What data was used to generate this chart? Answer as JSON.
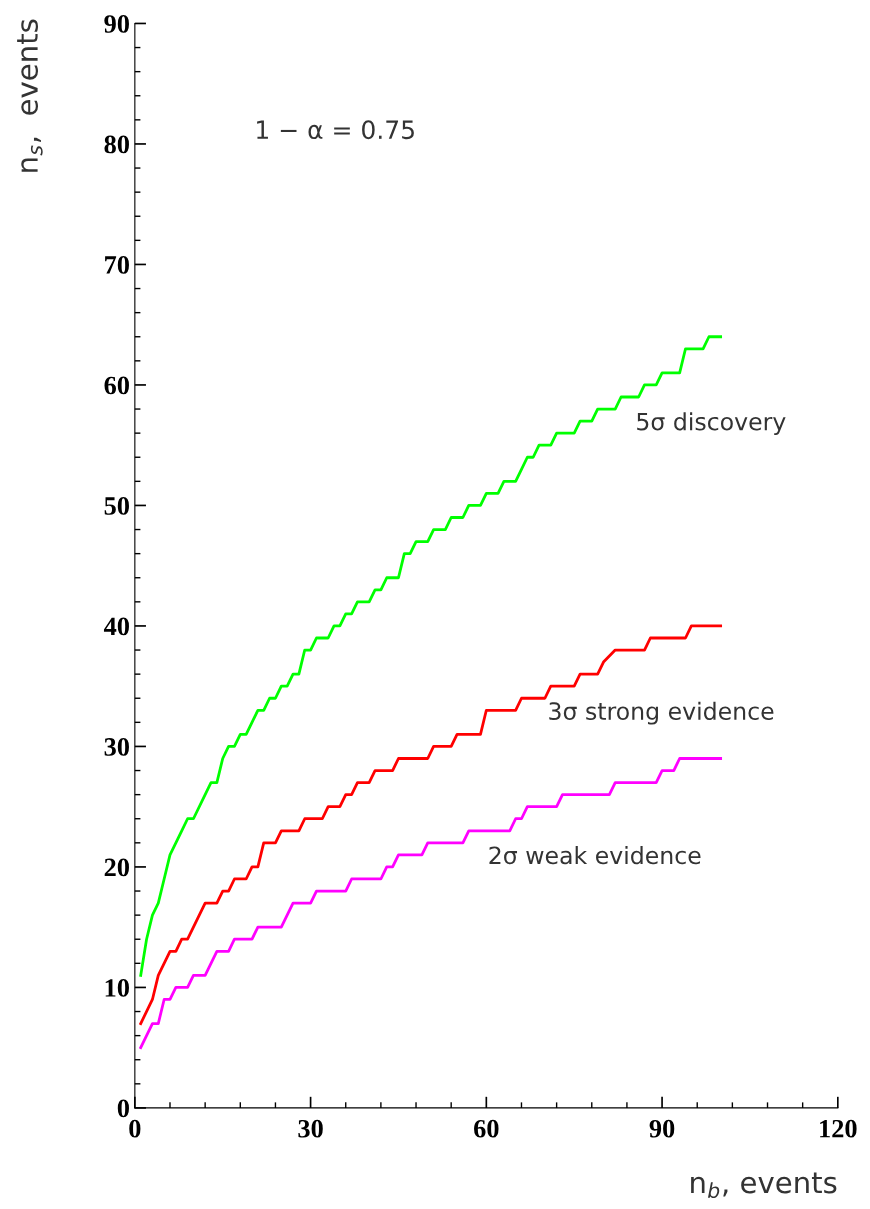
{
  "chart_data": {
    "type": "line",
    "xlabel": "n$_{b}$, events",
    "ylabel": "n$_{s}$,  events",
    "xlim": [
      0,
      120
    ],
    "xticks": [
      0,
      30,
      60,
      90,
      120
    ],
    "ylim": [
      0,
      90
    ],
    "yticks": [
      0,
      10,
      20,
      30,
      40,
      50,
      60,
      70,
      80,
      90
    ],
    "grid": false,
    "legend": false,
    "marker": "none",
    "line_style": "solid",
    "annotations": [
      "1 − α = 0.75"
    ],
    "series": [
      {
        "name": "5σ discovery",
        "color": "#00ff00",
        "x": [
          1,
          2,
          3,
          4,
          5,
          6,
          8,
          9,
          10,
          12,
          13,
          14,
          15,
          16,
          17,
          18,
          19,
          20,
          21,
          22,
          23,
          24,
          25,
          26,
          27,
          28,
          29,
          30,
          31,
          33,
          34,
          35,
          36,
          37,
          38,
          40,
          41,
          42,
          43,
          45,
          46,
          47,
          48,
          50,
          51,
          53,
          54,
          56,
          57,
          59,
          60,
          62,
          63,
          65,
          66,
          67,
          68,
          69,
          71,
          72,
          75,
          76,
          78,
          79,
          82,
          83,
          86,
          87,
          89,
          90,
          92,
          93,
          94,
          97,
          98,
          100
        ],
        "values": [
          11,
          14,
          16,
          17,
          19,
          21,
          23,
          24,
          24,
          26,
          27,
          27,
          29,
          30,
          30,
          31,
          31,
          32,
          33,
          33,
          34,
          34,
          35,
          35,
          36,
          36,
          38,
          38,
          39,
          39,
          40,
          40,
          41,
          41,
          42,
          42,
          43,
          43,
          44,
          44,
          46,
          46,
          47,
          47,
          48,
          48,
          49,
          49,
          50,
          50,
          51,
          51,
          52,
          52,
          53,
          54,
          54,
          55,
          55,
          56,
          56,
          57,
          57,
          58,
          58,
          59,
          59,
          60,
          60,
          61,
          61,
          61,
          63,
          63,
          64,
          64
        ]
      },
      {
        "name": "3σ strong evidence",
        "color": "#ff0000",
        "x": [
          1,
          3,
          4,
          6,
          7,
          8,
          9,
          10,
          12,
          14,
          15,
          16,
          17,
          19,
          20,
          21,
          22,
          24,
          25,
          28,
          29,
          32,
          33,
          35,
          36,
          37,
          38,
          40,
          41,
          44,
          45,
          50,
          51,
          54,
          55,
          59,
          60,
          65,
          66,
          70,
          71,
          75,
          76,
          79,
          80,
          82,
          87,
          88,
          94,
          95,
          100
        ],
        "values": [
          7,
          9,
          11,
          13,
          13,
          14,
          14,
          15,
          17,
          17,
          18,
          18,
          19,
          19,
          20,
          20,
          22,
          22,
          23,
          23,
          24,
          24,
          25,
          25,
          26,
          26,
          27,
          27,
          28,
          28,
          29,
          29,
          30,
          30,
          31,
          31,
          33,
          33,
          34,
          34,
          35,
          35,
          36,
          36,
          37,
          38,
          38,
          39,
          39,
          40,
          40
        ]
      },
      {
        "name": "2σ weak evidence",
        "color": "#ff00ff",
        "x": [
          1,
          3,
          4,
          5,
          6,
          7,
          9,
          10,
          12,
          14,
          16,
          17,
          20,
          21,
          25,
          27,
          30,
          31,
          36,
          37,
          42,
          43,
          44,
          45,
          49,
          50,
          56,
          57,
          64,
          65,
          66,
          67,
          72,
          73,
          81,
          82,
          89,
          90,
          92,
          93,
          100
        ],
        "values": [
          5,
          7,
          7,
          9,
          9,
          10,
          10,
          11,
          11,
          13,
          13,
          14,
          14,
          15,
          15,
          17,
          17,
          18,
          18,
          19,
          19,
          20,
          20,
          21,
          21,
          22,
          22,
          23,
          23,
          24,
          24,
          25,
          25,
          26,
          26,
          27,
          27,
          28,
          28,
          29,
          29
        ]
      }
    ]
  }
}
